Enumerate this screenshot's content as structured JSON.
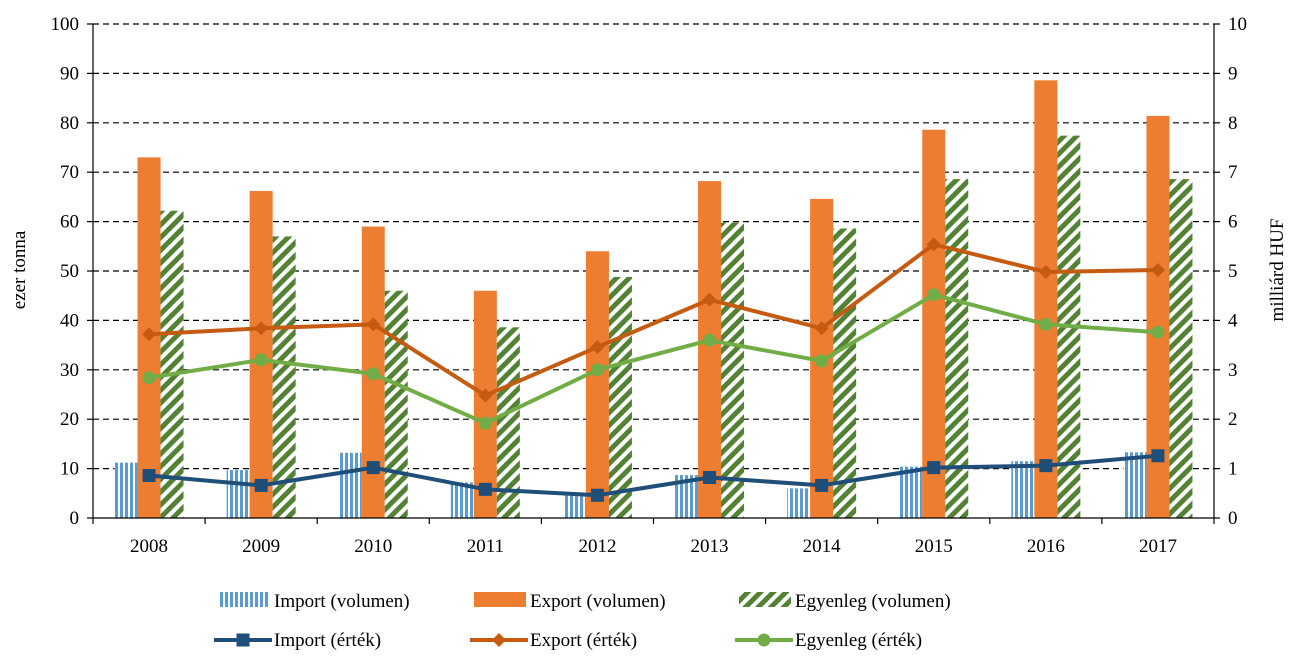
{
  "chart_data": {
    "type": "bar",
    "categories": [
      "2008",
      "2009",
      "2010",
      "2011",
      "2012",
      "2013",
      "2014",
      "2015",
      "2016",
      "2017"
    ],
    "ylabel": "ezer tonna",
    "y2label": "milliárd HUF",
    "ylim": [
      0,
      100
    ],
    "y2lim": [
      0,
      10
    ],
    "yticks": [
      "0",
      "10",
      "20",
      "30",
      "40",
      "50",
      "60",
      "70",
      "80",
      "90",
      "100"
    ],
    "y2ticks": [
      "0",
      "1",
      "2",
      "3",
      "4",
      "5",
      "6",
      "7",
      "8",
      "9",
      "10"
    ],
    "grid": "horizontal dashed",
    "legend_position": "bottom",
    "bar_series": [
      {
        "name": "Import (volumen)",
        "values": [
          11.2,
          9.7,
          13.2,
          7.2,
          5.2,
          8.7,
          6.0,
          10.4,
          11.5,
          13.3
        ],
        "color": "#5b9bd5",
        "pattern": "vertical-stripes"
      },
      {
        "name": "Export (volumen)",
        "values": [
          73.0,
          66.2,
          59.0,
          46.0,
          54.0,
          68.2,
          64.6,
          78.6,
          88.6,
          81.4
        ],
        "color": "#ed7d31",
        "pattern": "solid"
      },
      {
        "name": "Egyenleg (volumen)",
        "values": [
          62.2,
          57.0,
          46.0,
          38.6,
          48.8,
          59.8,
          58.6,
          68.6,
          77.4,
          68.6
        ],
        "color": "#70ad47",
        "pattern": "diagonal-stripes"
      }
    ],
    "line_series": [
      {
        "name": "Import (érték)",
        "values": [
          0.86,
          0.66,
          1.02,
          0.58,
          0.46,
          0.82,
          0.66,
          1.02,
          1.06,
          1.26
        ],
        "color": "#1f4e79",
        "marker": "square"
      },
      {
        "name": "Export (érték)",
        "values": [
          3.72,
          3.84,
          3.92,
          2.48,
          3.46,
          4.42,
          3.84,
          5.54,
          4.98,
          5.02
        ],
        "color": "#c55a11",
        "marker": "diamond"
      },
      {
        "name": "Egyenleg (érték)",
        "values": [
          2.84,
          3.2,
          2.92,
          1.92,
          3.0,
          3.6,
          3.18,
          4.52,
          3.92,
          3.76
        ],
        "color": "#70ad47",
        "marker": "circle"
      }
    ]
  }
}
